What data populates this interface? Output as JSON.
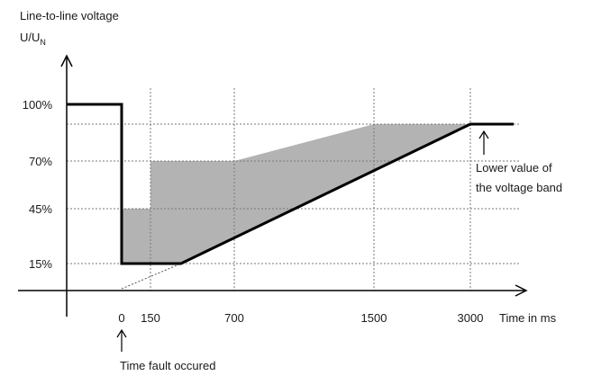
{
  "chart_data": {
    "type": "line",
    "title": "",
    "ylabel_line1": "Line-to-line voltage",
    "ylabel_base": "U/U",
    "ylabel_subscript": "N",
    "xlabel": "Time in ms",
    "x_ticks": [
      "0",
      "150",
      "700",
      "1500",
      "3000"
    ],
    "y_ticks": [
      "100%",
      "70%",
      "45%",
      "15%"
    ],
    "grid": "dashed",
    "series": [
      {
        "role": "lower-limit-curve",
        "points": [
          {
            "x": "pre-fault",
            "y": 100
          },
          {
            "x": 0,
            "y": 100
          },
          {
            "x": 0,
            "y": 15
          },
          {
            "x": 350,
            "y": 15
          },
          {
            "x": 3000,
            "y": 90
          },
          {
            "x": "after 3000",
            "y": 90
          }
        ]
      },
      {
        "role": "shaded-band-upper-edge",
        "points": [
          {
            "x": 0,
            "y": 15
          },
          {
            "x": 0,
            "y": 45
          },
          {
            "x": 150,
            "y": 45
          },
          {
            "x": 150,
            "y": 70
          },
          {
            "x": 700,
            "y": 70
          },
          {
            "x": 1500,
            "y": 90
          },
          {
            "x": 3000,
            "y": 90
          }
        ]
      }
    ],
    "annotations": [
      {
        "text_lines": [
          "Lower value of",
          "the voltage band"
        ],
        "points_to": "3000 ms, 90%"
      },
      {
        "text": "Time fault occured",
        "points_to": "0 ms"
      }
    ],
    "colors": {
      "band": "#b3b3b3",
      "curve": "#000000",
      "grid": "#7a7a7a"
    }
  }
}
